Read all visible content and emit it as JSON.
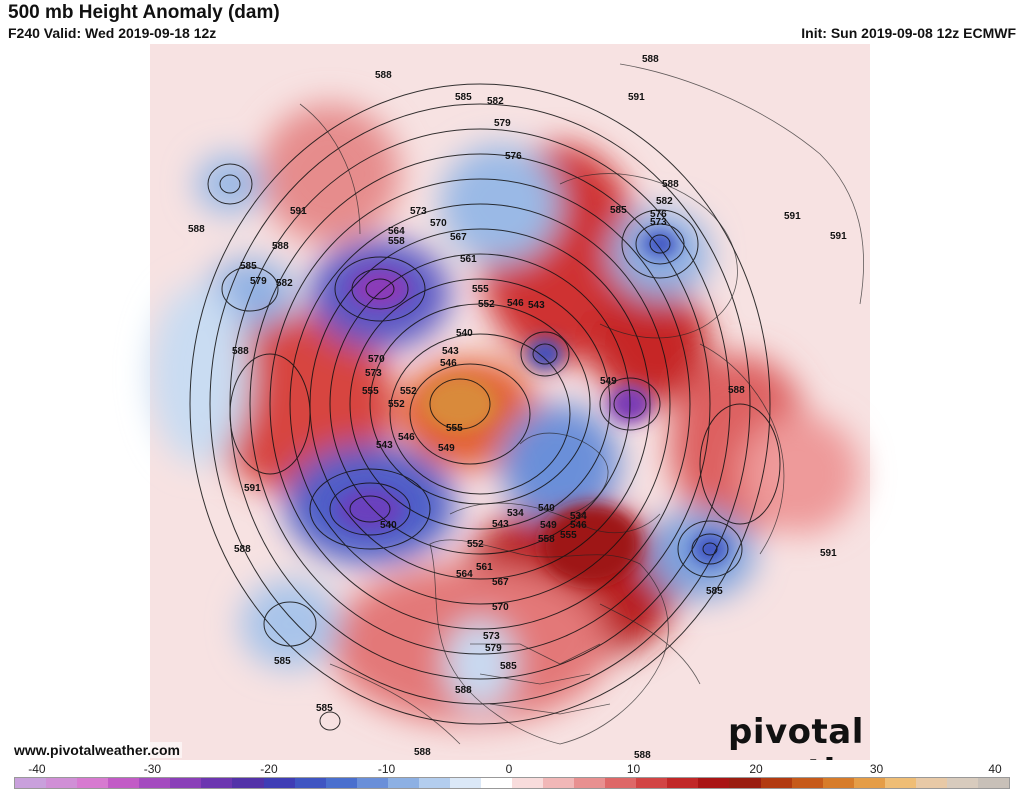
{
  "header": {
    "title": "500 mb Height Anomaly (dam)",
    "valid": "F240 Valid: Wed 2019-09-18 12z",
    "init": "Init: Sun 2019-09-08 12z ECMWF"
  },
  "footer": {
    "website": "www.pivotalweather.com",
    "brand": "pivotal weather"
  },
  "colorbar": {
    "ticks": [
      "-40",
      "-30",
      "-20",
      "-10",
      "0",
      "10",
      "20",
      "30",
      "40"
    ],
    "colors": [
      "#c9a0dc",
      "#d08fd6",
      "#d77ad0",
      "#c25bc6",
      "#a44bbf",
      "#8a3fb8",
      "#6c36b0",
      "#5332a8",
      "#3f3db5",
      "#3f55c2",
      "#4a6fce",
      "#6a8fd9",
      "#8db0e3",
      "#b3cdee",
      "#dbe8f7",
      "#ffffff",
      "#f8dcdc",
      "#f1b7b7",
      "#e89090",
      "#de6868",
      "#d24444",
      "#c12727",
      "#a91414",
      "#9a1d10",
      "#b23a10",
      "#c65a1a",
      "#d77c2a",
      "#e59d47",
      "#efbd75",
      "#e8c9a6",
      "#d8cbbd",
      "#c8c0b8"
    ]
  },
  "map": {
    "legend_note": "",
    "height_labels": [
      "588",
      "585",
      "582",
      "579",
      "576",
      "573",
      "570",
      "567",
      "564",
      "561",
      "558",
      "555",
      "552",
      "549",
      "546",
      "543",
      "540",
      "534",
      "591"
    ]
  }
}
